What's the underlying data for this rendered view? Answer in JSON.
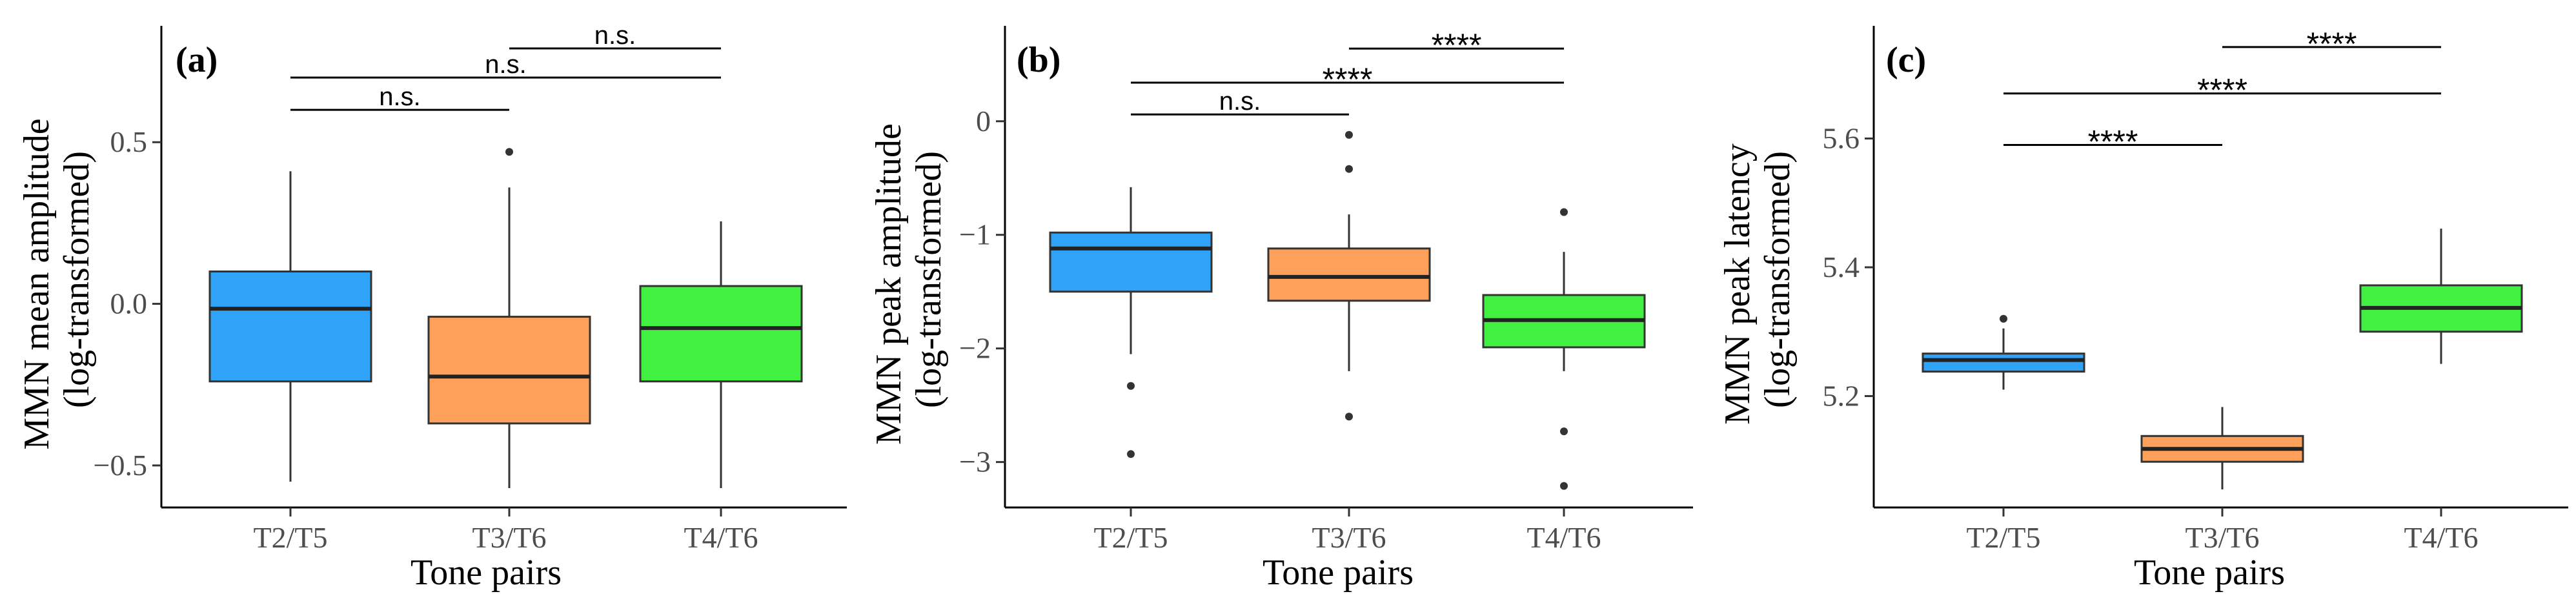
{
  "colors": {
    "T2/T5": "#2ea3f7",
    "T3/T6": "#ffa05a",
    "T4/T6": "#42f042"
  },
  "chart_data": [
    {
      "type": "boxplot",
      "panel_label": "(a)",
      "xlabel": "Tone pairs",
      "ylabel_line1": "MMN mean amplitude",
      "ylabel_line2": "(log-transformed)",
      "categories": [
        "T2/T5",
        "T3/T6",
        "T4/T6"
      ],
      "ylim": [
        -0.63,
        0.86
      ],
      "yticks": [
        -0.5,
        0.0,
        0.5
      ],
      "ytick_labels": [
        "−0.5",
        "0.0",
        "0.5"
      ],
      "boxes": [
        {
          "category": "T2/T5",
          "whisker_low": -0.55,
          "q1": -0.24,
          "median": -0.015,
          "q3": 0.1,
          "whisker_high": 0.41,
          "outliers": []
        },
        {
          "category": "T3/T6",
          "whisker_low": -0.57,
          "q1": -0.37,
          "median": -0.225,
          "q3": -0.04,
          "whisker_high": 0.36,
          "outliers": [
            0.47
          ]
        },
        {
          "category": "T4/T6",
          "whisker_low": -0.57,
          "q1": -0.24,
          "median": -0.075,
          "q3": 0.055,
          "whisker_high": 0.255,
          "outliers": []
        }
      ],
      "comparisons": [
        {
          "from": 0,
          "to": 1,
          "y": 0.6,
          "label": "n.s."
        },
        {
          "from": 0,
          "to": 2,
          "y": 0.7,
          "label": "n.s."
        },
        {
          "from": 1,
          "to": 2,
          "y": 0.79,
          "label": "n.s."
        }
      ]
    },
    {
      "type": "boxplot",
      "panel_label": "(b)",
      "xlabel": "Tone pairs",
      "ylabel_line1": "MMN peak amplitude",
      "ylabel_line2": "(log-transformed)",
      "categories": [
        "T2/T5",
        "T3/T6",
        "T4/T6"
      ],
      "ylim": [
        -3.4,
        0.84
      ],
      "yticks": [
        -3,
        -2,
        -1,
        0
      ],
      "ytick_labels": [
        "−3",
        "−2",
        "−1",
        "0"
      ],
      "boxes": [
        {
          "category": "T2/T5",
          "whisker_low": -2.05,
          "q1": -1.5,
          "median": -1.12,
          "q3": -0.98,
          "whisker_high": -0.58,
          "outliers": [
            -2.33,
            -2.93
          ]
        },
        {
          "category": "T3/T6",
          "whisker_low": -2.2,
          "q1": -1.58,
          "median": -1.37,
          "q3": -1.12,
          "whisker_high": -0.82,
          "outliers": [
            -0.12,
            -0.42,
            -2.6
          ]
        },
        {
          "category": "T4/T6",
          "whisker_low": -2.2,
          "q1": -1.99,
          "median": -1.75,
          "q3": -1.53,
          "whisker_high": -1.15,
          "outliers": [
            -0.8,
            -2.73,
            -3.21
          ]
        }
      ],
      "comparisons": [
        {
          "from": 0,
          "to": 1,
          "y": 0.06,
          "label": "n.s."
        },
        {
          "from": 0,
          "to": 2,
          "y": 0.34,
          "label": "****"
        },
        {
          "from": 1,
          "to": 2,
          "y": 0.64,
          "label": "****"
        }
      ]
    },
    {
      "type": "boxplot",
      "panel_label": "(c)",
      "xlabel": "Tone pairs",
      "ylabel_line1": "MMN peak latency",
      "ylabel_line2": "(log-transformed)",
      "categories": [
        "T2/T5",
        "T3/T6",
        "T4/T6"
      ],
      "ylim": [
        5.027,
        5.775
      ],
      "yticks": [
        5.2,
        5.4,
        5.6
      ],
      "ytick_labels": [
        "5.2",
        "5.4",
        "5.6"
      ],
      "boxes": [
        {
          "category": "T2/T5",
          "whisker_low": 5.21,
          "q1": 5.238,
          "median": 5.256,
          "q3": 5.266,
          "whisker_high": 5.305,
          "outliers": [
            5.32
          ]
        },
        {
          "category": "T3/T6",
          "whisker_low": 5.055,
          "q1": 5.098,
          "median": 5.118,
          "q3": 5.138,
          "whisker_high": 5.183,
          "outliers": []
        },
        {
          "category": "T4/T6",
          "whisker_low": 5.25,
          "q1": 5.3,
          "median": 5.337,
          "q3": 5.372,
          "whisker_high": 5.46,
          "outliers": []
        }
      ],
      "comparisons": [
        {
          "from": 0,
          "to": 1,
          "y": 5.59,
          "label": "****"
        },
        {
          "from": 0,
          "to": 2,
          "y": 5.67,
          "label": "****"
        },
        {
          "from": 1,
          "to": 2,
          "y": 5.742,
          "label": "****"
        }
      ]
    }
  ]
}
